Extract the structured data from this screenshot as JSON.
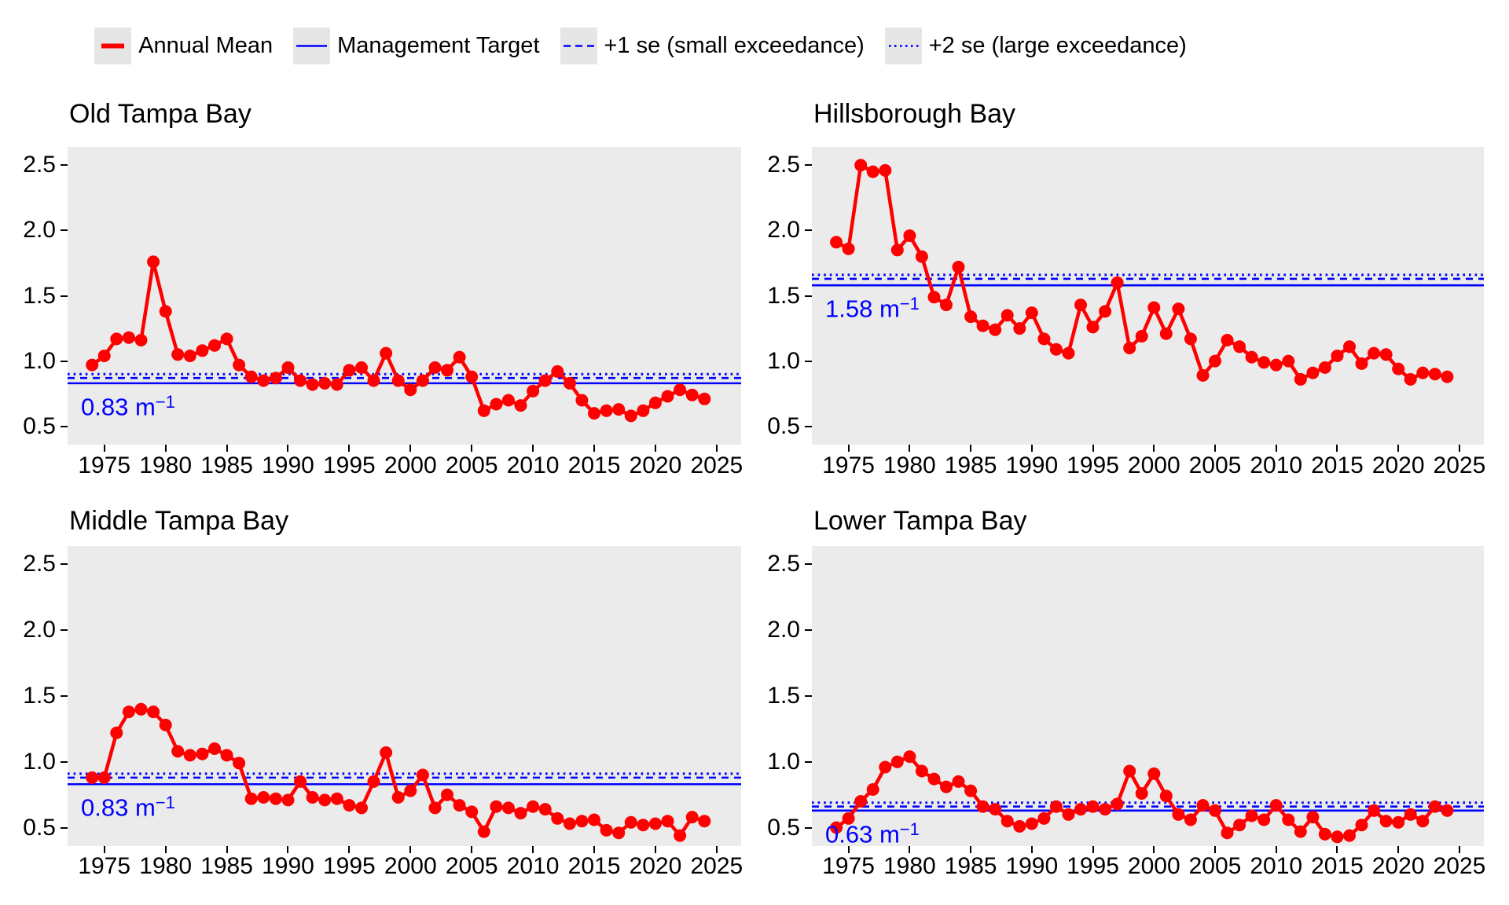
{
  "colors": {
    "annual_mean": "#FF0000",
    "reference": "#0000FF",
    "panel_background": "#EBEBEB",
    "legend_key_background": "#E6E6E6",
    "text": "#000000"
  },
  "legend": {
    "items": [
      {
        "label": "Annual Mean",
        "style": "red-solid"
      },
      {
        "label": "Management Target",
        "style": "blue-solid"
      },
      {
        "label": "+1 se (small exceedance)",
        "style": "blue-dashed"
      },
      {
        "label": "+2 se (large exceedance)",
        "style": "blue-dotted"
      }
    ]
  },
  "axes": {
    "xticks": [
      1975,
      1980,
      1985,
      1990,
      1995,
      2000,
      2005,
      2010,
      2015,
      2020,
      2025
    ],
    "yticks": [
      0.5,
      1.0,
      1.5,
      2.0,
      2.5
    ],
    "xlim": [
      1972,
      2027
    ],
    "ylim": [
      0.36,
      2.64
    ],
    "grid": false,
    "legend_position": "top"
  },
  "chart_data": {
    "type": "line",
    "x_years_range": [
      1974,
      2024
    ],
    "x_step": 1,
    "charts": [
      {
        "title": "Old Tampa Bay",
        "annotation": {
          "value": "0.83",
          "unit": "m",
          "exponent": "−1"
        },
        "reference_lines": [
          {
            "name": "Management Target",
            "value": 0.83,
            "style": "solid"
          },
          {
            "name": "+1 se (small exceedance)",
            "value": 0.87,
            "style": "dashed"
          },
          {
            "name": "+2 se (large exceedance)",
            "value": 0.9,
            "style": "dotted"
          }
        ],
        "series": [
          {
            "name": "Annual Mean",
            "values": [
              0.97,
              1.04,
              1.17,
              1.18,
              1.16,
              1.76,
              1.38,
              1.05,
              1.04,
              1.08,
              1.12,
              1.17,
              0.97,
              0.88,
              0.85,
              0.87,
              0.95,
              0.85,
              0.82,
              0.83,
              0.82,
              0.93,
              0.95,
              0.85,
              1.06,
              0.85,
              0.78,
              0.85,
              0.95,
              0.93,
              1.03,
              0.88,
              0.62,
              0.67,
              0.7,
              0.66,
              0.77,
              0.85,
              0.92,
              0.83,
              0.7,
              0.6,
              0.62,
              0.63,
              0.58,
              0.62,
              0.68,
              0.73,
              0.78,
              0.74,
              0.71
            ]
          }
        ]
      },
      {
        "title": "Hillsborough Bay",
        "annotation": {
          "value": "1.58",
          "unit": "m",
          "exponent": "−1"
        },
        "reference_lines": [
          {
            "name": "Management Target",
            "value": 1.58,
            "style": "solid"
          },
          {
            "name": "+1 se (small exceedance)",
            "value": 1.63,
            "style": "dashed"
          },
          {
            "name": "+2 se (large exceedance)",
            "value": 1.66,
            "style": "dotted"
          }
        ],
        "series": [
          {
            "name": "Annual Mean",
            "values": [
              1.91,
              1.86,
              2.5,
              2.45,
              2.46,
              1.85,
              1.96,
              1.8,
              1.49,
              1.43,
              1.72,
              1.34,
              1.27,
              1.24,
              1.35,
              1.25,
              1.37,
              1.17,
              1.09,
              1.06,
              1.43,
              1.26,
              1.38,
              1.6,
              1.1,
              1.19,
              1.41,
              1.21,
              1.4,
              1.17,
              0.89,
              1.0,
              1.16,
              1.11,
              1.03,
              0.99,
              0.97,
              1.0,
              0.86,
              0.91,
              0.95,
              1.04,
              1.11,
              0.98,
              1.06,
              1.05,
              0.94,
              0.86,
              0.91,
              0.9,
              0.88
            ]
          }
        ]
      },
      {
        "title": "Middle Tampa Bay",
        "annotation": {
          "value": "0.83",
          "unit": "m",
          "exponent": "−1"
        },
        "reference_lines": [
          {
            "name": "Management Target",
            "value": 0.83,
            "style": "solid"
          },
          {
            "name": "+1 se (small exceedance)",
            "value": 0.88,
            "style": "dashed"
          },
          {
            "name": "+2 se (large exceedance)",
            "value": 0.91,
            "style": "dotted"
          }
        ],
        "series": [
          {
            "name": "Annual Mean",
            "values": [
              0.88,
              0.88,
              1.22,
              1.38,
              1.4,
              1.38,
              1.28,
              1.08,
              1.05,
              1.06,
              1.1,
              1.05,
              0.99,
              0.72,
              0.73,
              0.72,
              0.71,
              0.85,
              0.73,
              0.71,
              0.72,
              0.67,
              0.65,
              0.85,
              1.07,
              0.73,
              0.78,
              0.9,
              0.65,
              0.75,
              0.67,
              0.62,
              0.47,
              0.66,
              0.65,
              0.61,
              0.66,
              0.64,
              0.57,
              0.53,
              0.55,
              0.56,
              0.48,
              0.46,
              0.54,
              0.52,
              0.53,
              0.55,
              0.44,
              0.58,
              0.55
            ]
          }
        ]
      },
      {
        "title": "Lower Tampa Bay",
        "annotation": {
          "value": "0.63",
          "unit": "m",
          "exponent": "−1"
        },
        "reference_lines": [
          {
            "name": "Management Target",
            "value": 0.63,
            "style": "solid"
          },
          {
            "name": "+1 se (small exceedance)",
            "value": 0.66,
            "style": "dashed"
          },
          {
            "name": "+2 se (large exceedance)",
            "value": 0.69,
            "style": "dotted"
          }
        ],
        "series": [
          {
            "name": "Annual Mean",
            "values": [
              0.5,
              0.57,
              0.7,
              0.79,
              0.96,
              1.0,
              1.04,
              0.93,
              0.87,
              0.81,
              0.85,
              0.78,
              0.66,
              0.64,
              0.55,
              0.51,
              0.53,
              0.57,
              0.66,
              0.6,
              0.64,
              0.66,
              0.64,
              0.68,
              0.93,
              0.76,
              0.91,
              0.74,
              0.6,
              0.56,
              0.67,
              0.63,
              0.46,
              0.52,
              0.59,
              0.56,
              0.67,
              0.56,
              0.47,
              0.58,
              0.45,
              0.43,
              0.44,
              0.52,
              0.63,
              0.55,
              0.54,
              0.6,
              0.55,
              0.66,
              0.63
            ]
          }
        ]
      }
    ]
  }
}
